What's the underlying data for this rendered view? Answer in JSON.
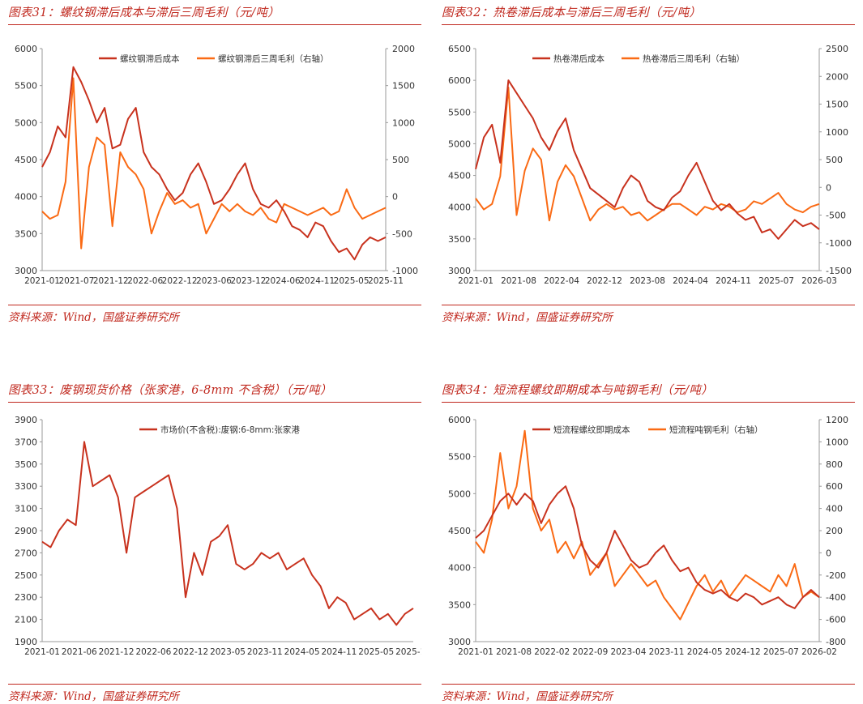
{
  "colors": {
    "accent": "#c0281e",
    "series_dark": "#c8321e",
    "series_orange": "#fa6a14"
  },
  "panels": [
    {
      "title": "图表31：螺纹钢滞后成本与滞后三周毛利（元/吨）",
      "source": "资料来源：Wind，国盛证券研究所",
      "chart_data": {
        "type": "line",
        "title": "",
        "x_ticks": [
          "2021-01",
          "2021-07",
          "2021-12",
          "2022-06",
          "2022-12",
          "2023-06",
          "2023-12",
          "2024-06",
          "2024-11",
          "2025-05",
          "2025-11"
        ],
        "y_left": {
          "ticks": [
            3000,
            3500,
            4000,
            4500,
            5000,
            5500,
            6000
          ],
          "lim": [
            3000,
            6000
          ]
        },
        "y_right": {
          "ticks": [
            -1000,
            -500,
            0,
            500,
            1000,
            1500,
            2000
          ],
          "lim": [
            -1000,
            2000
          ]
        },
        "series": [
          {
            "name": "螺纹钢滞后成本",
            "axis": "left",
            "color": "#c8321e",
            "values": [
              4400,
              4600,
              4950,
              4800,
              5750,
              5550,
              5300,
              5000,
              5200,
              4650,
              4700,
              5050,
              5200,
              4600,
              4400,
              4300,
              4100,
              3950,
              4050,
              4300,
              4450,
              4200,
              3900,
              3950,
              4100,
              4300,
              4450,
              4100,
              3900,
              3850,
              3950,
              3800,
              3600,
              3550,
              3450,
              3650,
              3600,
              3400,
              3250,
              3300,
              3150,
              3350,
              3450,
              3400,
              3450
            ]
          },
          {
            "name": "螺纹钢滞后三周毛利（右轴）",
            "axis": "right",
            "color": "#fa6a14",
            "values": [
              -200,
              -300,
              -250,
              200,
              1600,
              -700,
              400,
              800,
              700,
              -400,
              600,
              400,
              300,
              100,
              -500,
              -200,
              50,
              -100,
              -50,
              -150,
              -100,
              -500,
              -300,
              -100,
              -200,
              -100,
              -200,
              -250,
              -150,
              -300,
              -350,
              -100,
              -150,
              -200,
              -250,
              -200,
              -150,
              -250,
              -200,
              100,
              -150,
              -300,
              -250,
              -200,
              -150
            ]
          }
        ]
      }
    },
    {
      "title": "图表32：热卷滞后成本与滞后三周毛利（元/吨）",
      "source": "资料来源：Wind，国盛证券研究所",
      "chart_data": {
        "type": "line",
        "title": "",
        "x_ticks": [
          "2021-01",
          "2021-08",
          "2022-04",
          "2022-12",
          "2023-08",
          "2024-04",
          "2024-11",
          "2025-07",
          "2026-03"
        ],
        "y_left": {
          "ticks": [
            3000,
            3500,
            4000,
            4500,
            5000,
            5500,
            6000,
            6500
          ],
          "lim": [
            3000,
            6500
          ]
        },
        "y_right": {
          "ticks": [
            -1500,
            -1000,
            -500,
            0,
            500,
            1000,
            1500,
            2000,
            2500
          ],
          "lim": [
            -1500,
            2500
          ]
        },
        "series": [
          {
            "name": "热卷滞后成本",
            "axis": "left",
            "color": "#c8321e",
            "values": [
              4600,
              5100,
              5300,
              4700,
              6000,
              5800,
              5600,
              5400,
              5100,
              4900,
              5200,
              5400,
              4900,
              4600,
              4300,
              4200,
              4100,
              4000,
              4300,
              4500,
              4400,
              4100,
              4000,
              3950,
              4150,
              4250,
              4500,
              4700,
              4400,
              4100,
              3950,
              4050,
              3900,
              3800,
              3850,
              3600,
              3650,
              3500,
              3650,
              3800,
              3700,
              3750,
              3650
            ]
          },
          {
            "name": "热卷滞后三周毛利（右轴）",
            "axis": "right",
            "color": "#fa6a14",
            "values": [
              -200,
              -400,
              -300,
              200,
              1800,
              -500,
              300,
              700,
              500,
              -600,
              100,
              400,
              200,
              -200,
              -600,
              -400,
              -300,
              -400,
              -350,
              -500,
              -450,
              -600,
              -500,
              -400,
              -300,
              -300,
              -400,
              -500,
              -350,
              -400,
              -300,
              -350,
              -450,
              -400,
              -250,
              -300,
              -200,
              -100,
              -300,
              -400,
              -450,
              -350,
              -300
            ]
          }
        ]
      }
    },
    {
      "title": "图表33：废钢现货价格（张家港，6-8mm 不含税）（元/吨）",
      "source": "资料来源：Wind，国盛证券研究所",
      "chart_data": {
        "type": "line",
        "title": "",
        "x_ticks": [
          "2021-01",
          "2021-06",
          "2021-12",
          "2022-06",
          "2022-12",
          "2023-05",
          "2023-11",
          "2024-05",
          "2024-11",
          "2025-05",
          "2025-10"
        ],
        "y_left": {
          "ticks": [
            1900,
            2100,
            2300,
            2500,
            2700,
            2900,
            3100,
            3300,
            3500,
            3700,
            3900
          ],
          "lim": [
            1900,
            3900
          ]
        },
        "series": [
          {
            "name": "市场价(不含税):废钢:6-8mm:张家港",
            "axis": "left",
            "color": "#c8321e",
            "values": [
              2800,
              2750,
              2900,
              3000,
              2950,
              3700,
              3300,
              3350,
              3400,
              3200,
              2700,
              3200,
              3250,
              3300,
              3350,
              3400,
              3100,
              2300,
              2700,
              2500,
              2800,
              2850,
              2950,
              2600,
              2550,
              2600,
              2700,
              2650,
              2700,
              2550,
              2600,
              2650,
              2500,
              2400,
              2200,
              2300,
              2250,
              2100,
              2150,
              2200,
              2100,
              2150,
              2050,
              2150,
              2200
            ]
          }
        ]
      }
    },
    {
      "title": "图表34：短流程螺纹即期成本与吨钢毛利（元/吨）",
      "source": "资料来源：Wind，国盛证券研究所",
      "chart_data": {
        "type": "line",
        "title": "",
        "x_ticks": [
          "2021-01",
          "2021-08",
          "2022-02",
          "2022-09",
          "2023-04",
          "2023-11",
          "2024-05",
          "2024-12",
          "2025-07",
          "2026-02"
        ],
        "y_left": {
          "ticks": [
            3000,
            3500,
            4000,
            4500,
            5000,
            5500,
            6000
          ],
          "lim": [
            3000,
            6000
          ]
        },
        "y_right": {
          "ticks": [
            -800,
            -600,
            -400,
            -200,
            0,
            200,
            400,
            600,
            800,
            1000,
            1200
          ],
          "lim": [
            -800,
            1200
          ]
        },
        "series": [
          {
            "name": "短流程螺纹即期成本",
            "axis": "left",
            "color": "#c8321e",
            "values": [
              4400,
              4500,
              4700,
              4900,
              5000,
              4850,
              5000,
              4900,
              4600,
              4850,
              5000,
              5100,
              4800,
              4300,
              4100,
              4000,
              4200,
              4500,
              4300,
              4100,
              4000,
              4050,
              4200,
              4300,
              4100,
              3950,
              4000,
              3800,
              3700,
              3650,
              3700,
              3600,
              3550,
              3650,
              3600,
              3500,
              3550,
              3600,
              3500,
              3450,
              3600,
              3700,
              3600
            ]
          },
          {
            "name": "短流程吨钢毛利（右轴）",
            "axis": "right",
            "color": "#fa6a14",
            "values": [
              100,
              0,
              300,
              900,
              400,
              600,
              1100,
              400,
              200,
              300,
              0,
              100,
              -50,
              100,
              -200,
              -100,
              0,
              -300,
              -200,
              -100,
              -200,
              -300,
              -250,
              -400,
              -500,
              -600,
              -450,
              -300,
              -200,
              -350,
              -250,
              -400,
              -300,
              -200,
              -250,
              -300,
              -350,
              -200,
              -300,
              -100,
              -400,
              -350,
              -400
            ]
          }
        ]
      }
    }
  ]
}
